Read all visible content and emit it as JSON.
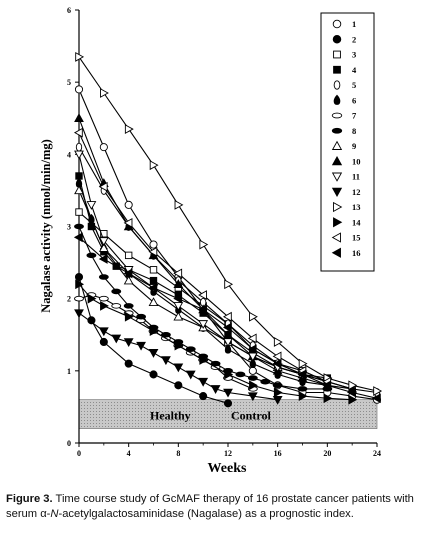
{
  "chart_data": {
    "type": "line",
    "xlabel": "Weeks",
    "ylabel": "Nagalase activity (nmol/min/mg)",
    "xlim": [
      0,
      24
    ],
    "ylim": [
      0,
      6
    ],
    "xticks": [
      0,
      4,
      8,
      12,
      16,
      20,
      24
    ],
    "yticks": [
      0,
      1,
      2,
      3,
      4,
      5,
      6
    ],
    "grid": false,
    "legend_position": "top-right",
    "healthy_control": {
      "label_left": "Healthy",
      "label_right": "Control",
      "range": [
        0.2,
        0.6
      ],
      "color": "#c8c8c8"
    },
    "series": [
      {
        "name": "1",
        "marker": "circle-open",
        "x": [
          0,
          2,
          4,
          6,
          8,
          10,
          12,
          14,
          16,
          18,
          20,
          22,
          24
        ],
        "y": [
          4.9,
          4.1,
          3.3,
          2.75,
          2.3,
          1.85,
          1.4,
          1.0,
          0.8,
          0.7,
          0.7,
          0.65,
          0.6
        ]
      },
      {
        "name": "2",
        "marker": "circle-filled",
        "x": [
          0,
          1,
          2,
          4,
          6,
          8,
          10,
          12
        ],
        "y": [
          2.3,
          1.7,
          1.4,
          1.1,
          0.95,
          0.8,
          0.65,
          0.55
        ]
      },
      {
        "name": "3",
        "marker": "square-open",
        "x": [
          0,
          2,
          4,
          6,
          8,
          10,
          12,
          14,
          16,
          18,
          20,
          22
        ],
        "y": [
          3.2,
          2.9,
          2.6,
          2.4,
          2.15,
          1.9,
          1.65,
          1.3,
          1.1,
          1.0,
          0.85,
          0.75
        ]
      },
      {
        "name": "4",
        "marker": "square-filled",
        "x": [
          0,
          1,
          2,
          3,
          4,
          6,
          8,
          10,
          12,
          14,
          16,
          18,
          20
        ],
        "y": [
          3.7,
          3.0,
          2.65,
          2.45,
          2.4,
          2.25,
          2.05,
          1.8,
          1.5,
          1.25,
          1.05,
          0.95,
          0.9
        ]
      },
      {
        "name": "5",
        "marker": "ellipse-open",
        "x": [
          0,
          2,
          4,
          6,
          8,
          10,
          12,
          14,
          16,
          18,
          20,
          22,
          24
        ],
        "y": [
          4.1,
          3.5,
          3.0,
          2.6,
          2.25,
          1.95,
          1.65,
          1.35,
          1.1,
          0.95,
          0.85,
          0.75,
          0.7
        ]
      },
      {
        "name": "6",
        "marker": "teardrop-filled",
        "x": [
          0,
          1,
          2,
          4,
          6,
          8,
          10,
          12,
          14,
          16,
          18,
          20
        ],
        "y": [
          3.6,
          3.1,
          2.7,
          2.35,
          2.1,
          1.85,
          1.6,
          1.3,
          1.1,
          0.95,
          0.85,
          0.8
        ]
      },
      {
        "name": "7",
        "marker": "ellipse-h-open",
        "x": [
          0,
          1,
          2,
          3,
          4,
          5,
          6,
          7,
          8,
          9,
          10,
          11,
          12,
          14
        ],
        "y": [
          2.0,
          2.05,
          2.0,
          1.9,
          1.8,
          1.7,
          1.55,
          1.45,
          1.35,
          1.25,
          1.15,
          1.05,
          0.9,
          0.75
        ]
      },
      {
        "name": "8",
        "marker": "ellipse-h-filled",
        "x": [
          0,
          1,
          2,
          3,
          4,
          5,
          6,
          7,
          8,
          9,
          10,
          11,
          12,
          13,
          14,
          15,
          16,
          18,
          20
        ],
        "y": [
          3.0,
          2.6,
          2.3,
          2.1,
          1.9,
          1.75,
          1.6,
          1.5,
          1.4,
          1.3,
          1.2,
          1.1,
          1.0,
          0.95,
          0.9,
          0.85,
          0.8,
          0.75,
          0.75
        ]
      },
      {
        "name": "9",
        "marker": "triangle-up-open",
        "x": [
          0,
          2,
          4,
          6,
          8,
          10,
          12,
          14,
          16,
          18
        ],
        "y": [
          3.5,
          2.7,
          2.25,
          1.95,
          1.75,
          1.6,
          1.4,
          1.2,
          1.05,
          0.95
        ]
      },
      {
        "name": "10",
        "marker": "triangle-up-filled",
        "x": [
          0,
          2,
          4,
          6,
          8,
          10,
          12,
          14,
          16,
          18,
          20,
          22
        ],
        "y": [
          4.5,
          3.6,
          3.0,
          2.6,
          2.2,
          1.85,
          1.5,
          1.2,
          1.0,
          0.9,
          0.8,
          0.75
        ]
      },
      {
        "name": "11",
        "marker": "triangle-down-open",
        "x": [
          0,
          1,
          2,
          4,
          6,
          8,
          10,
          12,
          14,
          16,
          18,
          20
        ],
        "y": [
          4.0,
          3.3,
          2.8,
          2.4,
          2.15,
          1.9,
          1.65,
          1.4,
          1.2,
          1.05,
          0.95,
          0.85
        ]
      },
      {
        "name": "12",
        "marker": "triangle-down-filled",
        "x": [
          0,
          2,
          3,
          4,
          5,
          6,
          7,
          8,
          9,
          10,
          11,
          12,
          14,
          16
        ],
        "y": [
          1.8,
          1.55,
          1.45,
          1.4,
          1.35,
          1.25,
          1.15,
          1.05,
          0.95,
          0.85,
          0.75,
          0.7,
          0.65,
          0.6
        ]
      },
      {
        "name": "13",
        "marker": "triangle-right-open",
        "x": [
          0,
          2,
          4,
          6,
          8,
          10,
          12,
          14,
          16,
          18,
          20,
          22,
          24
        ],
        "y": [
          5.35,
          4.85,
          4.35,
          3.85,
          3.3,
          2.75,
          2.2,
          1.75,
          1.4,
          1.1,
          0.9,
          0.8,
          0.72
        ]
      },
      {
        "name": "14",
        "marker": "triangle-right-filled",
        "x": [
          0,
          1,
          2,
          4,
          6,
          8,
          10,
          12,
          14,
          16,
          18,
          20,
          22
        ],
        "y": [
          2.2,
          2.0,
          1.9,
          1.75,
          1.55,
          1.35,
          1.15,
          0.95,
          0.8,
          0.7,
          0.65,
          0.62,
          0.6
        ]
      },
      {
        "name": "15",
        "marker": "triangle-left-open",
        "x": [
          0,
          2,
          4,
          6,
          8,
          10,
          12,
          14,
          16,
          18,
          20
        ],
        "y": [
          4.3,
          3.55,
          3.05,
          2.65,
          2.35,
          2.05,
          1.75,
          1.45,
          1.2,
          1.0,
          0.85
        ]
      },
      {
        "name": "16",
        "marker": "triangle-left-filled",
        "x": [
          0,
          2,
          4,
          6,
          8,
          10,
          12,
          14,
          16,
          18,
          20,
          22,
          24
        ],
        "y": [
          2.85,
          2.55,
          2.35,
          2.15,
          2.0,
          1.85,
          1.6,
          1.3,
          1.1,
          0.95,
          0.8,
          0.7,
          0.62
        ]
      }
    ]
  },
  "caption": {
    "label": "Figure 3.",
    "text_before": " Time course study of GcMAF therapy of 16 prostate cancer patients with serum α-",
    "italic": "N",
    "text_after": "-acetylgalactosaminidase (Nagalase) as a prognostic index."
  }
}
